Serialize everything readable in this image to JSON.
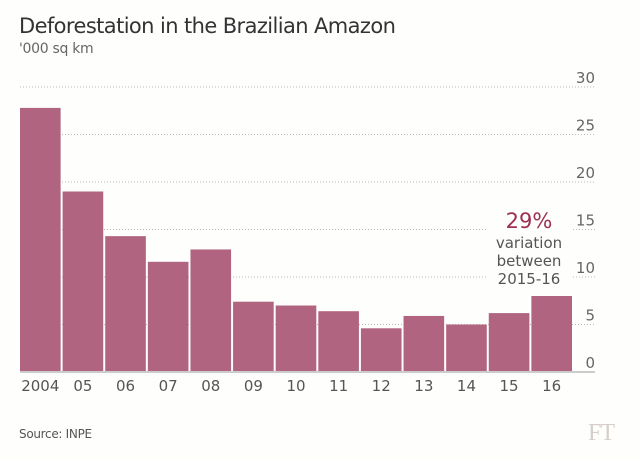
{
  "chart_data": {
    "type": "bar",
    "title": "Deforestation in the Brazilian Amazon",
    "subtitle": "'000 sq km",
    "categories": [
      "2004",
      "05",
      "06",
      "07",
      "08",
      "09",
      "10",
      "11",
      "12",
      "13",
      "14",
      "15",
      "16"
    ],
    "values": [
      27.8,
      19.0,
      14.3,
      11.6,
      12.9,
      7.4,
      7.0,
      6.4,
      4.6,
      5.9,
      5.0,
      6.2,
      8.0
    ],
    "ylim": [
      0,
      30
    ],
    "yticks": [
      0,
      5,
      10,
      15,
      20,
      25,
      30
    ],
    "y_axis_side": "right",
    "grid": true,
    "bar_color": "#b0647f",
    "annotation": {
      "value": "29%",
      "lines": [
        "variation",
        "between",
        "2015-16"
      ],
      "color": "#9e2f50"
    },
    "source": "Source: INPE"
  },
  "logo": "FT"
}
